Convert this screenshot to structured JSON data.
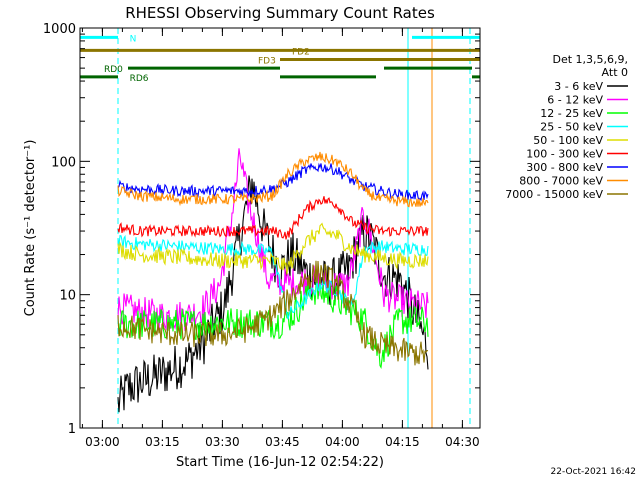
{
  "chart_data": {
    "type": "line",
    "title": "RHESSI Observing Summary Count Rates",
    "xlabel": "Start Time (16-Jun-12 02:54:22)",
    "ylabel": "Count Rate (s⁻¹ detector⁻¹)",
    "yscale": "log",
    "ylim": [
      1,
      1000
    ],
    "xlim_minutes": [
      0,
      100
    ],
    "x_ticks": [
      {
        "label": "03:00",
        "min": 5.6
      },
      {
        "label": "03:15",
        "min": 20.6
      },
      {
        "label": "03:30",
        "min": 35.6
      },
      {
        "label": "03:45",
        "min": 50.6
      },
      {
        "label": "04:00",
        "min": 65.6
      },
      {
        "label": "04:15",
        "min": 80.6
      },
      {
        "label": "04:30",
        "min": 95.6
      }
    ],
    "y_ticks": [
      {
        "label": "1",
        "value": 1
      },
      {
        "label": "10",
        "value": 10
      },
      {
        "label": "100",
        "value": 100
      },
      {
        "label": "1000",
        "value": 1000
      }
    ],
    "legend": {
      "header": [
        "Det 1,3,5,6,9,",
        "Att 0"
      ],
      "entries": [
        {
          "label": "3 - 6 keV",
          "color": "#000000"
        },
        {
          "label": "6 - 12 keV",
          "color": "#ff00ff"
        },
        {
          "label": "12 - 25 keV",
          "color": "#00ff00"
        },
        {
          "label": "25 - 50 keV",
          "color": "#00ffff"
        },
        {
          "label": "50 - 100 keV",
          "color": "#dddd00"
        },
        {
          "label": "100 - 300 keV",
          "color": "#ff0000"
        },
        {
          "label": "300 - 800 keV",
          "color": "#0000ff"
        },
        {
          "label": "800 - 7000 keV",
          "color": "#ff8c00"
        },
        {
          "label": "7000 - 15000 keV",
          "color": "#8b7500"
        }
      ]
    },
    "series": [
      {
        "name": "3 - 6 keV",
        "color": "#000000",
        "noise": 0.18,
        "t": [
          9.5,
          12,
          20,
          27,
          31,
          36,
          39,
          43,
          46,
          50,
          53,
          57,
          62,
          67,
          71,
          73,
          76,
          80,
          83,
          87
        ],
        "v": [
          1.5,
          2,
          2.5,
          3.2,
          4.5,
          8,
          20,
          70,
          30,
          15,
          20,
          14,
          12,
          15,
          30,
          25,
          14,
          13,
          8,
          4
        ]
      },
      {
        "name": "6 - 12 keV",
        "color": "#ff00ff",
        "noise": 0.12,
        "t": [
          9.5,
          14,
          20,
          27,
          31,
          35,
          38,
          40,
          42,
          44,
          47,
          52,
          57,
          62,
          67,
          71,
          73,
          76,
          80,
          87
        ],
        "v": [
          8,
          7.5,
          7,
          7,
          8,
          12,
          40,
          110,
          50,
          30,
          13,
          12,
          13,
          12,
          12,
          40,
          25,
          10,
          9,
          8
        ]
      },
      {
        "name": "12 - 25 keV",
        "color": "#00ff00",
        "noise": 0.12,
        "t": [
          9.5,
          15,
          25,
          35,
          42,
          46,
          50,
          53,
          58,
          62,
          67,
          71,
          75,
          80,
          87
        ],
        "v": [
          6,
          6,
          6,
          6.2,
          6.2,
          6.2,
          6.2,
          7,
          11,
          10,
          8,
          6.5,
          3.5,
          6.5,
          6.2
        ]
      },
      {
        "name": "25 - 50 keV",
        "color": "#00ffff",
        "noise": 0.05,
        "t": [
          9.5,
          15,
          25,
          35,
          42,
          48,
          52,
          56,
          60,
          64,
          68,
          71,
          75,
          80,
          87
        ],
        "v": [
          25,
          24,
          23,
          22,
          22,
          21,
          7,
          9,
          12,
          11,
          8,
          22,
          23,
          22,
          22
        ]
      },
      {
        "name": "50 - 100 keV",
        "color": "#dddd00",
        "noise": 0.06,
        "t": [
          9.5,
          15,
          25,
          35,
          42,
          48,
          52,
          56,
          60,
          64,
          68,
          71,
          75,
          80,
          87
        ],
        "v": [
          22,
          20,
          19,
          18,
          18,
          18,
          16,
          24,
          30,
          28,
          22,
          20,
          19,
          18,
          18
        ]
      },
      {
        "name": "100 - 300 keV",
        "color": "#ff0000",
        "noise": 0.04,
        "t": [
          9.5,
          15,
          25,
          35,
          42,
          48,
          52,
          56,
          60,
          64,
          68,
          71,
          75,
          80,
          87
        ],
        "v": [
          32,
          30,
          30,
          30,
          30,
          30,
          28,
          42,
          52,
          48,
          35,
          32,
          30,
          30,
          30
        ]
      },
      {
        "name": "300 - 800 keV",
        "color": "#0000ff",
        "noise": 0.04,
        "t": [
          9.5,
          15,
          25,
          35,
          42,
          48,
          52,
          56,
          60,
          64,
          68,
          71,
          75,
          80,
          87
        ],
        "v": [
          65,
          62,
          60,
          60,
          60,
          62,
          70,
          85,
          92,
          86,
          72,
          65,
          60,
          56,
          55
        ]
      },
      {
        "name": "800 - 7000 keV",
        "color": "#ff8c00",
        "noise": 0.04,
        "t": [
          9.5,
          15,
          25,
          35,
          42,
          48,
          52,
          56,
          60,
          64,
          68,
          71,
          75,
          80,
          87
        ],
        "v": [
          60,
          55,
          52,
          52,
          52,
          55,
          80,
          100,
          108,
          100,
          80,
          60,
          52,
          50,
          48
        ]
      },
      {
        "name": "7000 - 15000 keV",
        "color": "#8b7500",
        "noise": 0.1,
        "t": [
          9.5,
          15,
          25,
          35,
          42,
          48,
          52,
          56,
          60,
          64,
          68,
          71,
          75,
          80,
          87
        ],
        "v": [
          6,
          5.5,
          5,
          5,
          5.5,
          7,
          9,
          13,
          15,
          12,
          8,
          5,
          4.2,
          3.8,
          3.5
        ]
      }
    ],
    "state_bars": [
      {
        "label": "N",
        "color": "#00ffff",
        "level": 850,
        "segments": [
          [
            0,
            9.5
          ],
          [
            83,
            100
          ]
        ],
        "label_min": 12.4
      },
      {
        "label": "FD2",
        "color": "#8b7500",
        "level": 680,
        "segments": [
          [
            0,
            100
          ]
        ],
        "label_min": 53
      },
      {
        "label": "FD3",
        "color": "#8b7500",
        "level": 580,
        "segments": [
          [
            50,
            100
          ]
        ],
        "label_min": 44.5
      },
      {
        "label": "RD0",
        "color": "#006400",
        "level": 500,
        "segments": [
          [
            12,
            50
          ],
          [
            76,
            98
          ]
        ],
        "label_min": 6
      },
      {
        "label": "RD6",
        "color": "#006400",
        "level": 430,
        "segments": [
          [
            0,
            9.5
          ],
          [
            50,
            74
          ],
          [
            98,
            100
          ]
        ],
        "label_min": 12.4
      }
    ],
    "markers": [
      {
        "color": "#00ffff",
        "min": 9.5,
        "style": "dashed"
      },
      {
        "color": "#00ffff",
        "min": 82,
        "style": "solid"
      },
      {
        "color": "#ff8c00",
        "min": 88,
        "style": "solid"
      },
      {
        "color": "#00ffff",
        "min": 97.5,
        "style": "dashed"
      }
    ]
  },
  "footer": {
    "date": "22-Oct-2021 16:42"
  }
}
